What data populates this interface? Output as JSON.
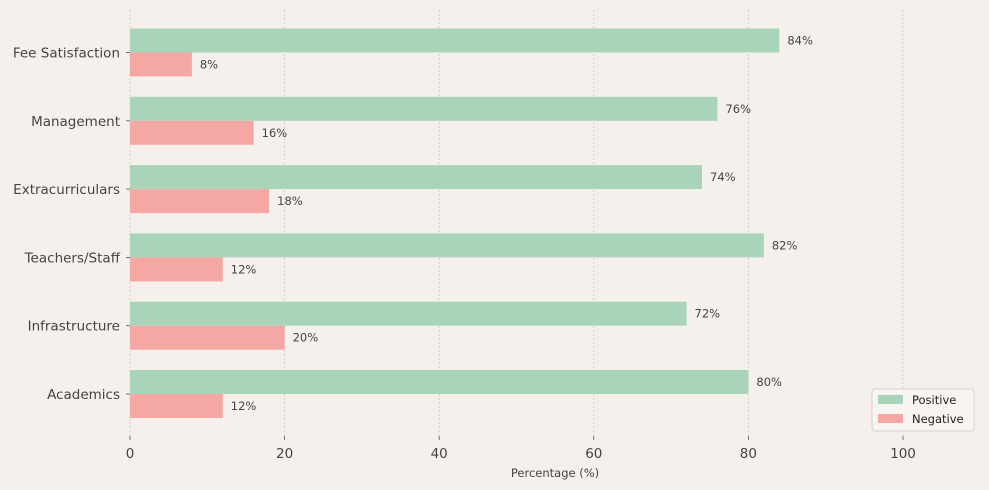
{
  "chart_data": {
    "type": "bar",
    "orientation": "horizontal",
    "categories": [
      "Academics",
      "Infrastructure",
      "Teachers/Staff",
      "Extracurriculars",
      "Management",
      "Fee Satisfaction"
    ],
    "series": [
      {
        "name": "Positive",
        "values": [
          80,
          72,
          82,
          74,
          76,
          84
        ],
        "color": "#a8d5ba"
      },
      {
        "name": "Negative",
        "values": [
          12,
          20,
          12,
          18,
          16,
          8
        ],
        "color": "#f4a7a3"
      }
    ],
    "value_suffix": "%",
    "title": "",
    "xlabel": "Percentage (%)",
    "ylabel": "",
    "xlim": [
      0,
      110
    ],
    "xticks": [
      0,
      20,
      40,
      60,
      80,
      100
    ],
    "grid": "x-dashed",
    "legend_position": "bottom-right"
  }
}
